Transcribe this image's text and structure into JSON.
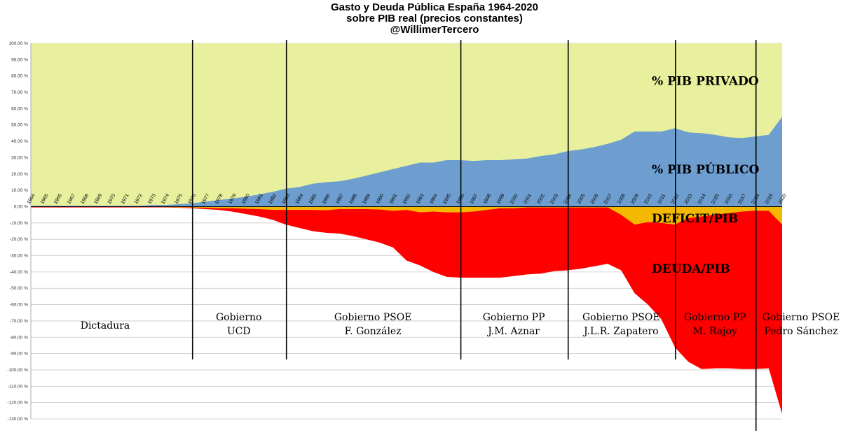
{
  "chart_data": {
    "type": "area",
    "title": "Gasto y Deuda Pública España 1964-2020",
    "subtitle": "sobre PIB real (precios constantes)",
    "author": "@WillimerTercero",
    "xlabel": "",
    "ylabel": "",
    "ylim": [
      -130,
      100
    ],
    "grid": true,
    "yticks": [
      100,
      90,
      80,
      70,
      60,
      50,
      40,
      30,
      20,
      10,
      0,
      -10,
      -20,
      -30,
      -40,
      -50,
      -60,
      -70,
      -80,
      -90,
      -100,
      -110,
      -120,
      -130
    ],
    "ytick_labels": [
      "100,00 %",
      "90,00 %",
      "80,00 %",
      "70,00 %",
      "60,00 %",
      "50,00 %",
      "40,00 %",
      "30,00 %",
      "20,00 %",
      "10,00 %",
      "0,00 %",
      "-10,00 %",
      "-20,00 %",
      "-30,00 %",
      "-40,00 %",
      "-50,00 %",
      "-60,00 %",
      "-70,00 %",
      "-80,00 %",
      "-90,00 %",
      "-100,00 %",
      "-110,00 %",
      "-120,00 %",
      "-130,00 %"
    ],
    "categories": [
      "1964",
      "1965",
      "1966",
      "1967",
      "1968",
      "1969",
      "1970",
      "1971",
      "1972",
      "1973",
      "1974",
      "1975",
      "1976",
      "1977",
      "1978",
      "1979",
      "1980",
      "1981",
      "1982",
      "1983",
      "1984",
      "1985",
      "1986",
      "1987",
      "1988",
      "1989",
      "1990",
      "1991",
      "1992",
      "1993",
      "1994",
      "1995",
      "1996",
      "1997",
      "1998",
      "1999",
      "2000",
      "2001",
      "2002",
      "2003",
      "2004",
      "2005",
      "2006",
      "2007",
      "2008",
      "2009",
      "2010",
      "2011",
      "2012",
      "2013",
      "2014",
      "2015",
      "2016",
      "2017",
      "2018",
      "2019",
      "2020"
    ],
    "series": [
      {
        "name": "% PIB PRIVADO",
        "color": "#e8f09e",
        "values": [
          100,
          100,
          100,
          100,
          100,
          100,
          100,
          100,
          100,
          100,
          100,
          100,
          100,
          100,
          100,
          100,
          100,
          100,
          100,
          100,
          100,
          100,
          100,
          100,
          100,
          100,
          100,
          100,
          100,
          100,
          100,
          100,
          100,
          100,
          100,
          100,
          100,
          100,
          100,
          100,
          100,
          100,
          100,
          100,
          100,
          100,
          100,
          100,
          100,
          100,
          100,
          100,
          100,
          100,
          100,
          100,
          100
        ]
      },
      {
        "name": "% PIB PÚBLICO",
        "color": "#6e9ed0",
        "values": [
          0.5,
          0.5,
          0.5,
          0.5,
          0.5,
          0.5,
          0.5,
          0.5,
          0.5,
          1,
          1,
          1.5,
          2,
          3,
          4,
          5,
          6,
          7.5,
          9,
          11,
          12,
          14,
          15,
          15.5,
          17,
          19,
          21,
          23,
          25,
          27,
          27,
          28.5,
          28.5,
          28,
          28.5,
          28.5,
          29,
          29.5,
          31,
          32,
          34,
          35,
          36.5,
          38.5,
          41,
          46,
          46,
          46,
          48,
          45.5,
          45,
          44,
          42.5,
          42,
          43,
          44,
          55
        ]
      },
      {
        "name": "DEFICIT/PIB",
        "color": "#f5b800",
        "values": [
          -0.2,
          -0.2,
          -0.2,
          -0.2,
          -0.2,
          -0.2,
          -0.2,
          -0.2,
          -0.3,
          -0.3,
          -0.3,
          -0.5,
          -0.5,
          -0.7,
          -1,
          -1,
          -1.3,
          -1.5,
          -2,
          -2,
          -2,
          -2,
          -2.2,
          -1.5,
          -1.5,
          -1.5,
          -1.8,
          -2.5,
          -2,
          -3.5,
          -3,
          -3.5,
          -3.5,
          -3,
          -2,
          -1,
          -1,
          -0.5,
          -0.5,
          -0.5,
          -0.5,
          -0.5,
          -0.5,
          -0.5,
          -5,
          -11,
          -9.5,
          -10,
          -11,
          -7,
          -6,
          -5,
          -4,
          -3,
          -2.5,
          -2.5,
          -11
        ]
      },
      {
        "name": "DEUDA/PIB",
        "color": "#ff0000",
        "values": [
          -0.5,
          -0.5,
          -0.5,
          -0.5,
          -0.5,
          -0.5,
          -0.5,
          -0.5,
          -0.5,
          -0.5,
          -0.5,
          -0.7,
          -1,
          -1.5,
          -2,
          -3,
          -4.5,
          -6,
          -8,
          -11,
          -13,
          -15,
          -16,
          -16.5,
          -18,
          -20,
          -22,
          -25,
          -33,
          -36,
          -40,
          -43,
          -43.5,
          -43.5,
          -43.5,
          -43.5,
          -42.5,
          -41.5,
          -41,
          -39.5,
          -39,
          -38,
          -36.5,
          -35,
          -39,
          -53,
          -60,
          -69,
          -86,
          -95,
          -99.5,
          -99,
          -99,
          -99.5,
          -99.5,
          -99,
          -127
        ]
      }
    ],
    "annotations": [
      {
        "label": "% PIB PRIVADO"
      },
      {
        "label": "% PIB PÚBLICO"
      },
      {
        "label": "DEFICIT/PIB"
      },
      {
        "label": "DEUDA/PIB"
      }
    ],
    "periods": [
      {
        "line1": "Dictadura",
        "line2": "",
        "color": "#000000",
        "start": "1964"
      },
      {
        "line1": "Gobierno",
        "line2": "UCD",
        "color": "#000000",
        "start": "1976"
      },
      {
        "line1": "Gobierno PSOE",
        "line2": "F. González",
        "color": "#000000",
        "start": "1983"
      },
      {
        "line1": "Gobierno PP",
        "line2": "J.M. Aznar",
        "color": "#000000",
        "start": "1996"
      },
      {
        "line1": "Gobierno PSOE",
        "line2": "J.L.R. Zapatero",
        "color": "#000000",
        "start": "2004"
      },
      {
        "line1": "Gobierno PP",
        "line2": "M. Rajoy",
        "color": "#ffffff",
        "start": "2012"
      },
      {
        "line1": "Gobierno PSOE",
        "line2": "Pedro Sánchez",
        "color": "#000000",
        "start": "2018"
      }
    ]
  }
}
